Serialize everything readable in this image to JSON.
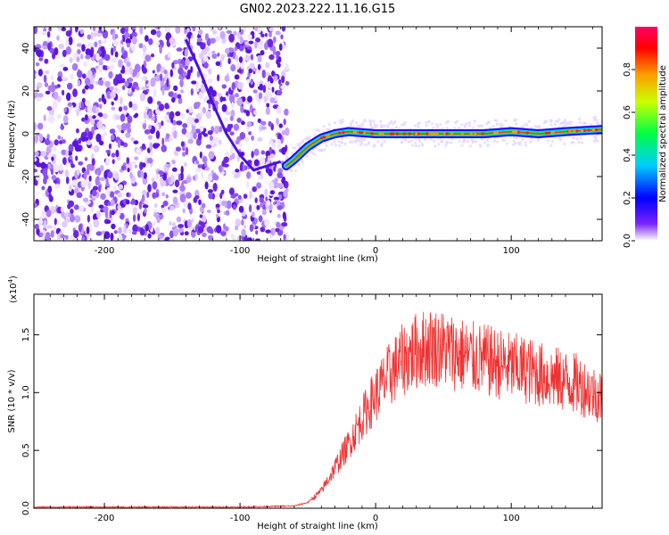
{
  "figure_title": "GN02.2023.222.11.16.G15",
  "colors": {
    "snr_line": "#ee3333",
    "scatter_purple": "#7a2cf0",
    "trend_dark": "#4a10e0",
    "colorbar": [
      "#ffffff",
      "#7a22ff",
      "#0000ff",
      "#00ccff",
      "#00ff44",
      "#ccff00",
      "#ff9900",
      "#ff0000",
      "#ff0066"
    ]
  },
  "chart_data": [
    {
      "type": "heatmap",
      "xlabel": "Height of straight line (km)",
      "ylabel": "Frequency (Hz)",
      "xlim": [
        -252,
        167
      ],
      "ylim": [
        -50,
        50
      ],
      "x_ticks": [
        -200,
        -100,
        0,
        100
      ],
      "x_tick_labels": [
        "-200",
        "-100",
        "0",
        "100"
      ],
      "y_ticks": [
        -40,
        -20,
        0,
        20,
        40
      ],
      "y_tick_labels": [
        "-40",
        "-20",
        "0",
        "20",
        "40"
      ],
      "colorbar": {
        "label": "Normalized spectral amplitude",
        "range": [
          0,
          1
        ],
        "ticks": [
          0.0,
          0.2,
          0.4,
          0.6,
          0.8
        ],
        "tick_labels": [
          "0.0",
          "0.2",
          "0.4",
          "0.6",
          "0.8"
        ]
      },
      "noise_region_x": [
        -252,
        -65
      ],
      "dominant_trace": {
        "x": [
          -66,
          -60,
          -50,
          -40,
          -30,
          -20,
          0,
          20,
          40,
          60,
          80,
          100,
          120,
          140,
          167
        ],
        "y": [
          -15,
          -12,
          -6,
          -2,
          0,
          1,
          0,
          0,
          0,
          0,
          0,
          1,
          0,
          1,
          2
        ]
      },
      "slanted_trace": {
        "x": [
          -140,
          -130,
          -120,
          -110,
          -100,
          -90,
          -80,
          -70
        ],
        "y": [
          44,
          30,
          14,
          0,
          -10,
          -17,
          -15,
          -13
        ]
      }
    },
    {
      "type": "line",
      "xlabel": "Height of straight line (km)",
      "ylabel": "SNR (10 * v/v)",
      "y_multiplier_label": "(x10",
      "y_multiplier_exp": "4",
      "y_multiplier_close": ")",
      "xlim": [
        -252,
        167
      ],
      "ylim": [
        0,
        1.85
      ],
      "x_ticks": [
        -200,
        -100,
        0,
        100
      ],
      "x_tick_labels": [
        "-200",
        "-100",
        "0",
        "100"
      ],
      "y_ticks": [
        0.0,
        0.5,
        1.0,
        1.5
      ],
      "y_tick_labels": [
        "0.0",
        "0.5",
        "1.0",
        "1.5"
      ],
      "series": [
        {
          "x": [
            -252,
            -200,
            -150,
            -100,
            -60,
            -50,
            -40,
            -30,
            -20,
            -10,
            0,
            10,
            20,
            30,
            40,
            50,
            60,
            70,
            80,
            90,
            100,
            110,
            120,
            130,
            140,
            150,
            160,
            167
          ],
          "y": [
            0.01,
            0.01,
            0.01,
            0.01,
            0.02,
            0.05,
            0.15,
            0.35,
            0.55,
            0.78,
            0.98,
            1.15,
            1.28,
            1.36,
            1.4,
            1.38,
            1.34,
            1.3,
            1.28,
            1.25,
            1.22,
            1.2,
            1.16,
            1.13,
            1.1,
            1.07,
            1.0,
            0.97
          ]
        }
      ]
    }
  ]
}
